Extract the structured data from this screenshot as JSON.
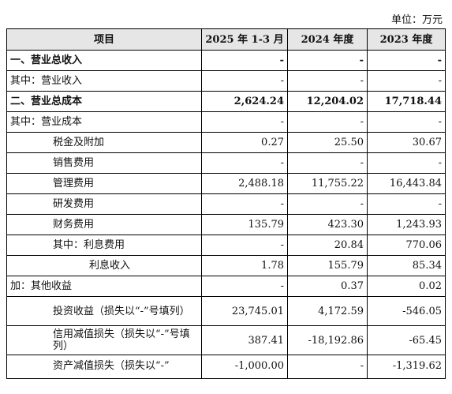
{
  "unit_label": "单位：万元",
  "headers": [
    "项目",
    "2025 年 1-3 月",
    "2024 年度",
    "2023 年度"
  ],
  "rows": [
    {
      "label": "一、营业总收入",
      "v1": "-",
      "v2": "-",
      "v3": "-",
      "bold": true,
      "indent": 0
    },
    {
      "label": "其中：营业收入",
      "v1": "-",
      "v2": "-",
      "v3": "-",
      "bold": false,
      "indent": 0
    },
    {
      "label": "二、营业总成本",
      "v1": "2,624.24",
      "v2": "12,204.02",
      "v3": "17,718.44",
      "bold": true,
      "indent": 0
    },
    {
      "label": "其中：营业成本",
      "v1": "-",
      "v2": "-",
      "v3": "-",
      "bold": false,
      "indent": 0
    },
    {
      "label": "税金及附加",
      "v1": "0.27",
      "v2": "25.50",
      "v3": "30.67",
      "bold": false,
      "indent": 1
    },
    {
      "label": "销售费用",
      "v1": "-",
      "v2": "-",
      "v3": "-",
      "bold": false,
      "indent": 1
    },
    {
      "label": "管理费用",
      "v1": "2,488.18",
      "v2": "11,755.22",
      "v3": "16,443.84",
      "bold": false,
      "indent": 1
    },
    {
      "label": "研发费用",
      "v1": "-",
      "v2": "-",
      "v3": "-",
      "bold": false,
      "indent": 1
    },
    {
      "label": "财务费用",
      "v1": "135.79",
      "v2": "423.30",
      "v3": "1,243.93",
      "bold": false,
      "indent": 1
    },
    {
      "label": "其中：利息费用",
      "v1": "-",
      "v2": "20.84",
      "v3": "770.06",
      "bold": false,
      "indent": 1
    },
    {
      "label": "利息收入",
      "v1": "1.78",
      "v2": "155.79",
      "v3": "85.34",
      "bold": false,
      "indent": 2
    },
    {
      "label": "加：其他收益",
      "v1": "-",
      "v2": "0.37",
      "v3": "0.02",
      "bold": false,
      "indent": 0
    },
    {
      "label": "投资收益（损失以“-”号填列）",
      "v1": "23,745.01",
      "v2": "4,172.59",
      "v3": "-546.05",
      "bold": false,
      "indent": 1,
      "tall": true
    },
    {
      "label": "信用减值损失（损失以“-”号填列）",
      "v1": "387.41",
      "v2": "-18,192.86",
      "v3": "-65.45",
      "bold": false,
      "indent": 1,
      "tall": true
    },
    {
      "label": "资产减值损失（损失以“-”",
      "v1": "-1,000.00",
      "v2": "-",
      "v3": "-1,319.62",
      "bold": false,
      "indent": 1,
      "last": true
    }
  ]
}
